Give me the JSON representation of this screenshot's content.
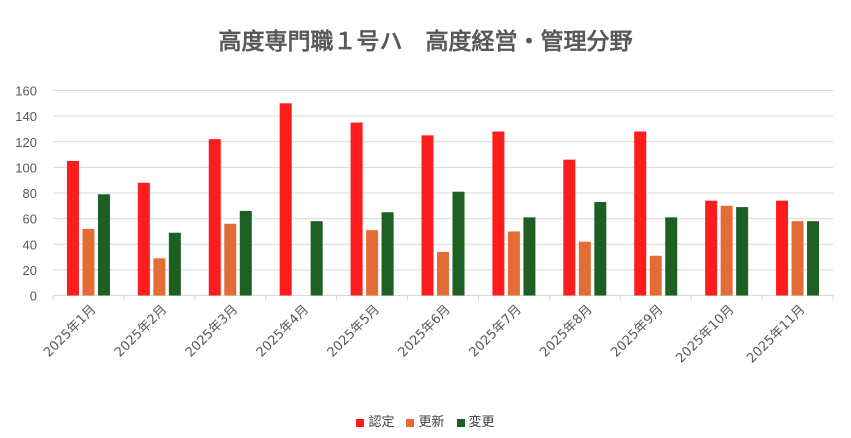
{
  "chart_data": {
    "type": "bar",
    "title": "高度専門職１号ハ　高度経営・管理分野",
    "categories": [
      "2025年1月",
      "2025年2月",
      "2025年3月",
      "2025年4月",
      "2025年5月",
      "2025年6月",
      "2025年7月",
      "2025年8月",
      "2025年9月",
      "2025年10月",
      "2025年11月"
    ],
    "series": [
      {
        "name": "認定",
        "color": "#ff1c1c",
        "values": [
          105,
          88,
          122,
          150,
          135,
          125,
          128,
          106,
          128,
          74,
          74
        ]
      },
      {
        "name": "更新",
        "color": "#e46c36",
        "values": [
          52,
          29,
          56,
          null,
          51,
          34,
          50,
          42,
          31,
          70,
          58
        ]
      },
      {
        "name": "変更",
        "color": "#1e5f24",
        "values": [
          79,
          49,
          66,
          58,
          65,
          81,
          61,
          73,
          61,
          69,
          58
        ]
      }
    ],
    "ylim": [
      0,
      160
    ],
    "yticks": [
      0,
      20,
      40,
      60,
      80,
      100,
      120,
      140,
      160
    ],
    "grid": true,
    "legend": "bottom"
  }
}
